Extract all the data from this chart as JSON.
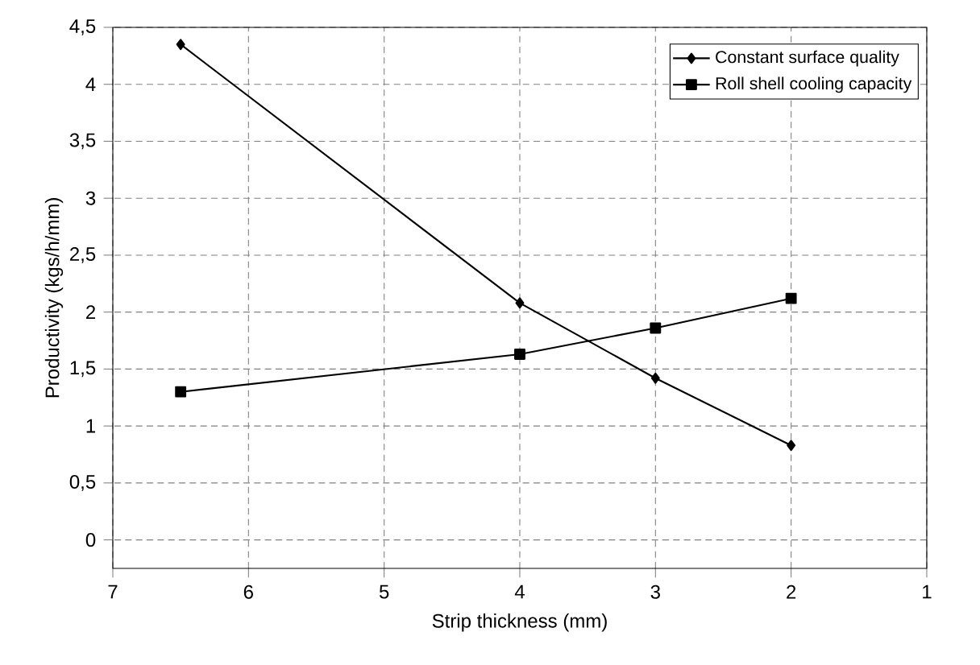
{
  "chart_data": {
    "type": "line",
    "xlabel": "Strip thickness (mm)",
    "ylabel": "Productivity (kgs/h/mm)",
    "x": [
      6.5,
      4,
      3,
      2
    ],
    "series": [
      {
        "name": "Constant surface quality",
        "color": "#000000",
        "marker": "diamond",
        "values": [
          4.35,
          2.08,
          1.42,
          0.83
        ]
      },
      {
        "name": "Roll shell cooling capacity",
        "color": "#000000",
        "marker": "square",
        "values": [
          1.3,
          1.63,
          1.86,
          2.12
        ]
      }
    ],
    "xlim": [
      7,
      1
    ],
    "xticks": [
      7,
      6,
      5,
      4,
      3,
      2,
      1
    ],
    "ylim": [
      -0.25,
      4.5
    ],
    "yticks": [
      {
        "value": 0,
        "label": "0"
      },
      {
        "value": 0.5,
        "label": "0,5"
      },
      {
        "value": 1,
        "label": "1"
      },
      {
        "value": 1.5,
        "label": "1,5"
      },
      {
        "value": 2,
        "label": "2"
      },
      {
        "value": 2.5,
        "label": "2,5"
      },
      {
        "value": 3,
        "label": "3"
      },
      {
        "value": 3.5,
        "label": "3,5"
      },
      {
        "value": 4,
        "label": "4"
      },
      {
        "value": 4.5,
        "label": "4,5"
      }
    ],
    "grid": true,
    "legend": "top right",
    "line_style": "solid"
  }
}
